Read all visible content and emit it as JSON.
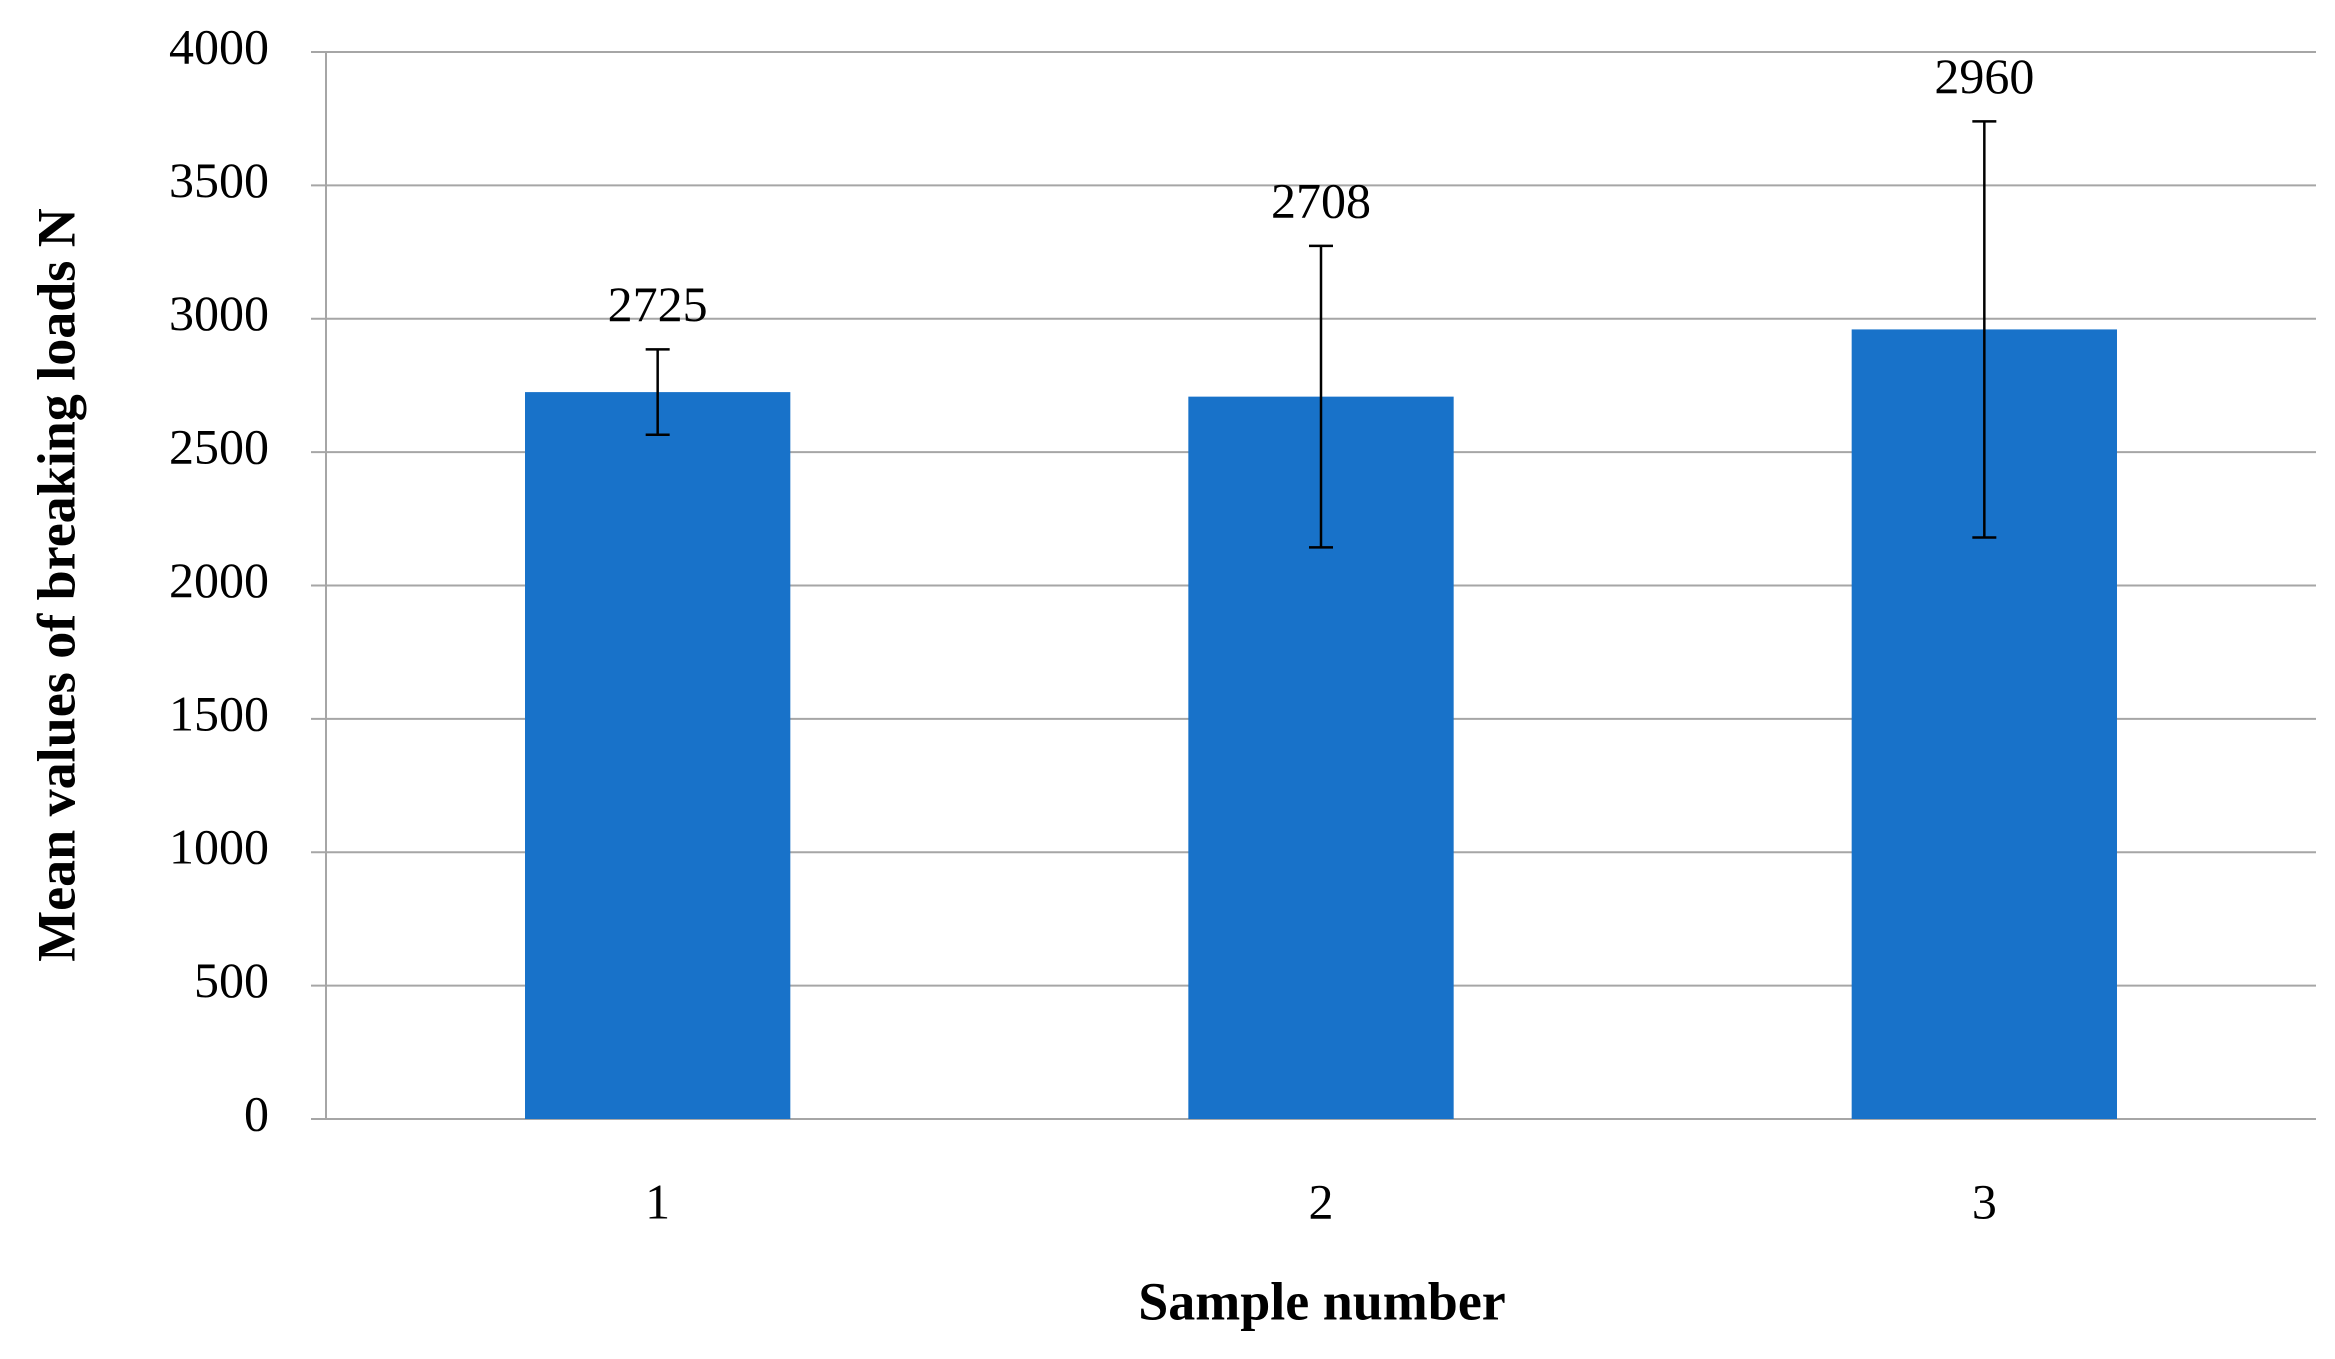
{
  "chart_data": {
    "type": "bar",
    "x_label": "Sample number",
    "y_label": "Mean values of breaking loads N",
    "categories": [
      "1",
      "2",
      "3"
    ],
    "values": [
      2725,
      2708,
      2960
    ],
    "errors": [
      160,
      565,
      780
    ],
    "color": "#1872c9",
    "ylim": [
      0,
      4000
    ],
    "yticks": [
      0,
      500,
      1000,
      1500,
      2000,
      2500,
      3000,
      3500,
      4000
    ],
    "grid": true
  }
}
